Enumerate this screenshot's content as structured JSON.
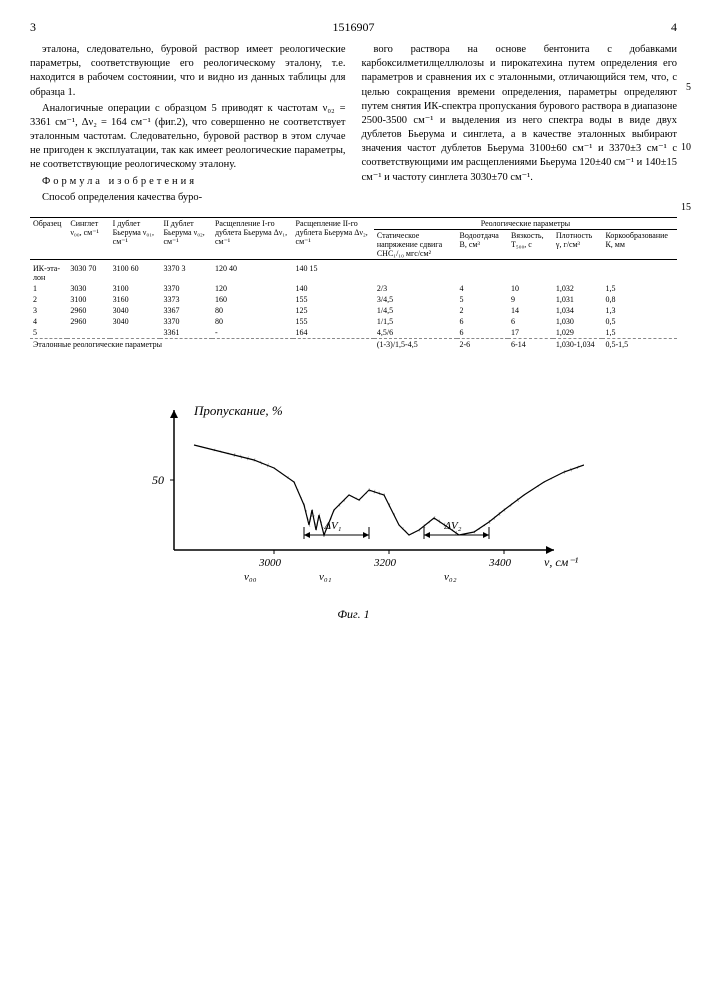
{
  "header": {
    "page_left": "3",
    "doc_number": "1516907",
    "page_right": "4"
  },
  "left_col": {
    "p1": "эталона, следовательно, буровой раствор имеет реологические параметры, соответствующие его реологическому эталону, т.е. находится в рабочем состоянии, что и видно из данных таблицы для образца 1.",
    "p2": "Аналогичные операции с образцом 5 приводят к частотам ν₀₂ = 3361 см⁻¹, Δν₂ = 164 см⁻¹ (фиг.2), что совершенно не соответствует эталонным частотам. Следовательно, буровой раствор в этом случае не пригоден к эксплуатации, так как имеет реологические параметры, не соответствующие реологическому эталону.",
    "formula": "Формула изобретения",
    "p3": "Способ определения качества буро-"
  },
  "right_col": {
    "p1": "вого раствора на основе бентонита с добавками карбоксилметилцеллюлозы и пирокатехина путем определения его параметров и сравнения их с эталонными, отличающийся тем, что, с целью сокращения времени определения, параметры определяют путем снятия ИК-спектра пропускания бурового раствора в диапазоне 2500-3500 см⁻¹ и выделения из него спектра воды в виде двух дублетов Бьерума и синглета, а в качестве эталонных выбирают значения частот дублетов Бьерума 3100±60 см⁻¹ и 3370±3 см⁻¹ с соответствующими им расщеплениями Бьерума 120±40 см⁻¹ и 140±15 см⁻¹ и частоту синглета 3030±70 см⁻¹."
  },
  "line_nums": {
    "n5": "5",
    "n10": "10",
    "n15": "15"
  },
  "table": {
    "headers": {
      "c1": "Образец",
      "c2": "Синглет ν₀₀, см⁻¹",
      "c3": "I дублет Бьерума ν₀₁, см⁻¹",
      "c4": "II дублет Бьерума ν₀₂, см⁻¹",
      "c5": "Расщепление I-го дублета Бьерума Δν₁, см⁻¹",
      "c6": "Расщепление II-го дублета Бьерума Δν₂, см⁻¹",
      "group": "Реологические параметры",
      "c7": "Статическое напряжение сдвига СНС₁/₁₀ мгс/см²",
      "c8": "Водоотдача В, см³",
      "c9": "Вязкость, Т₅₀₀, с",
      "c10": "Плотность γ, г/см³",
      "c11": "Коркообразование К, мм"
    },
    "rows": [
      {
        "c1": "ИК-эта-лон",
        "c2": "3030  70",
        "c3": "3100  60",
        "c4": "3370  3",
        "c5": "120  40",
        "c6": "140  15",
        "c7": "",
        "c8": "",
        "c9": "",
        "c10": "",
        "c11": ""
      },
      {
        "c1": "1",
        "c2": "3030",
        "c3": "3100",
        "c4": "3370",
        "c5": "120",
        "c6": "140",
        "c7": "2/3",
        "c8": "4",
        "c9": "10",
        "c10": "1,032",
        "c11": "1,5"
      },
      {
        "c1": "2",
        "c2": "3100",
        "c3": "3160",
        "c4": "3373",
        "c5": "160",
        "c6": "155",
        "c7": "3/4,5",
        "c8": "5",
        "c9": "9",
        "c10": "1,031",
        "c11": "0,8"
      },
      {
        "c1": "3",
        "c2": "2960",
        "c3": "3040",
        "c4": "3367",
        "c5": "80",
        "c6": "125",
        "c7": "1/4,5",
        "c8": "2",
        "c9": "14",
        "c10": "1,034",
        "c11": "1,3"
      },
      {
        "c1": "4",
        "c2": "2960",
        "c3": "3040",
        "c4": "3370",
        "c5": "80",
        "c6": "155",
        "c7": "1/1,5",
        "c8": "6",
        "c9": "6",
        "c10": "1,030",
        "c11": "0,5"
      },
      {
        "c1": "5",
        "c2": "",
        "c3": "",
        "c4": "3361",
        "c5": "-",
        "c6": "164",
        "c7": "4,5/6",
        "c8": "6",
        "c9": "17",
        "c10": "1,029",
        "c11": "1,5"
      }
    ],
    "footer_label": "Эталонные реологические параметры",
    "footer_row": {
      "c7": "(1-3)/1,5-4,5",
      "c8": "2-6",
      "c9": "6-14",
      "c10": "1,030-1,034",
      "c11": "0,5-1,5"
    }
  },
  "chart": {
    "y_label": "Пропускание, %",
    "x_label": "ν, см⁻¹",
    "caption": "Фиг. 1",
    "y_tick": "50",
    "x_ticks": [
      "3000",
      "3200",
      "3400"
    ],
    "markers": [
      "ν₀₀",
      "ν₀₁",
      "ν₀₂"
    ],
    "deltas": [
      "ΔV₁",
      "ΔV₂"
    ],
    "style": {
      "line_color": "#000000",
      "line_width": 1.2,
      "background": "#ffffff",
      "font_size": 11
    },
    "curve_points": [
      [
        20,
        35
      ],
      [
        40,
        40
      ],
      [
        60,
        45
      ],
      [
        80,
        50
      ],
      [
        100,
        58
      ],
      [
        120,
        72
      ],
      [
        130,
        95
      ],
      [
        135,
        115
      ],
      [
        138,
        100
      ],
      [
        142,
        120
      ],
      [
        145,
        105
      ],
      [
        150,
        125
      ],
      [
        160,
        100
      ],
      [
        175,
        85
      ],
      [
        185,
        90
      ],
      [
        195,
        80
      ],
      [
        210,
        85
      ],
      [
        225,
        115
      ],
      [
        235,
        125
      ],
      [
        245,
        120
      ],
      [
        260,
        108
      ],
      [
        275,
        118
      ],
      [
        285,
        125
      ],
      [
        300,
        122
      ],
      [
        315,
        112
      ],
      [
        330,
        100
      ],
      [
        350,
        85
      ],
      [
        370,
        72
      ],
      [
        390,
        62
      ],
      [
        410,
        55
      ]
    ]
  }
}
